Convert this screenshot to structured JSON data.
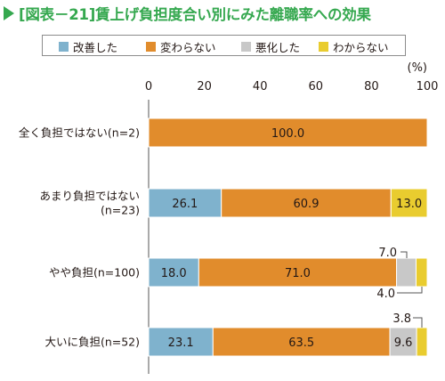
{
  "title": "[図表－21]賃上げ負担度合い別にみた離職率への効果",
  "legend": {
    "items": [
      {
        "label": "改善した",
        "color": "#7fb2cd"
      },
      {
        "label": "変わらない",
        "color": "#e18c2c"
      },
      {
        "label": "悪化した",
        "color": "#c8c8c8"
      },
      {
        "label": "わからない",
        "color": "#e9cc2f"
      }
    ]
  },
  "unit_label": "(%)",
  "chart_data": {
    "type": "bar",
    "orientation": "horizontal",
    "stacked": true,
    "title": "[図表－21]賃上げ負担度合い別にみた離職率への効果",
    "xlim": [
      0,
      100
    ],
    "xticks": [
      "0",
      "20",
      "40",
      "60",
      "80",
      "100"
    ],
    "categories": [
      [
        "全く負担ではない(n=2)"
      ],
      [
        "あまり負担ではない",
        "(n=23)"
      ],
      [
        "やや負担(n=100)"
      ],
      [
        "大いに負担(n=52)"
      ]
    ],
    "series": [
      {
        "name": "改善した",
        "color": "#7fb2cd",
        "values": [
          0,
          26.1,
          18.0,
          23.1
        ]
      },
      {
        "name": "変わらない",
        "color": "#e18c2c",
        "values": [
          100.0,
          60.9,
          71.0,
          63.5
        ]
      },
      {
        "name": "悪化した",
        "color": "#c8c8c8",
        "values": [
          0,
          0,
          7.0,
          9.6
        ]
      },
      {
        "name": "わからない",
        "color": "#e9cc2f",
        "values": [
          0,
          13.0,
          4.0,
          3.8
        ]
      }
    ],
    "data_labels": [
      [
        "",
        "100.0",
        "",
        ""
      ],
      [
        "26.1",
        "60.9",
        "",
        "13.0"
      ],
      [
        "18.0",
        "71.0",
        "7.0",
        "4.0"
      ],
      [
        "23.1",
        "63.5",
        "9.6",
        "3.8"
      ]
    ]
  }
}
